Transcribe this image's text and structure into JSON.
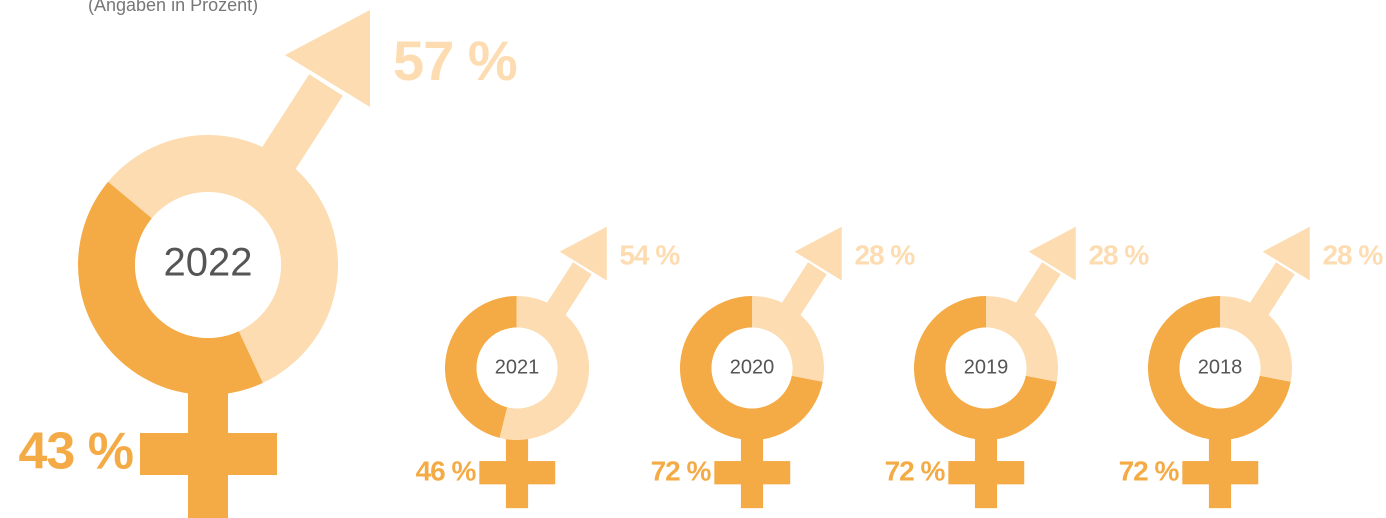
{
  "subtitle": "(Angaben in Prozent)",
  "chart_data": [
    {
      "type": "donut",
      "center_label": "2022",
      "values": [
        43,
        57
      ],
      "value_labels": [
        "43 %",
        "57 %"
      ],
      "colors": [
        "#f5ab45",
        "#fcdcb0"
      ]
    },
    {
      "type": "donut",
      "center_label": "2021",
      "values": [
        46,
        54
      ],
      "value_labels": [
        "46 %",
        "54 %"
      ],
      "colors": [
        "#f5ab45",
        "#fcdcb0"
      ]
    },
    {
      "type": "donut",
      "center_label": "2020",
      "values": [
        72,
        28
      ],
      "value_labels": [
        "72 %",
        "28 %"
      ],
      "colors": [
        "#f5ab45",
        "#fcdcb0"
      ]
    },
    {
      "type": "donut",
      "center_label": "2019",
      "values": [
        72,
        28
      ],
      "value_labels": [
        "72 %",
        "28 %"
      ],
      "colors": [
        "#f5ab45",
        "#fcdcb0"
      ]
    },
    {
      "type": "donut",
      "center_label": "2018",
      "values": [
        72,
        28
      ],
      "value_labels": [
        "72 %",
        "28 %"
      ],
      "colors": [
        "#f5ab45",
        "#fcdcb0"
      ]
    }
  ]
}
